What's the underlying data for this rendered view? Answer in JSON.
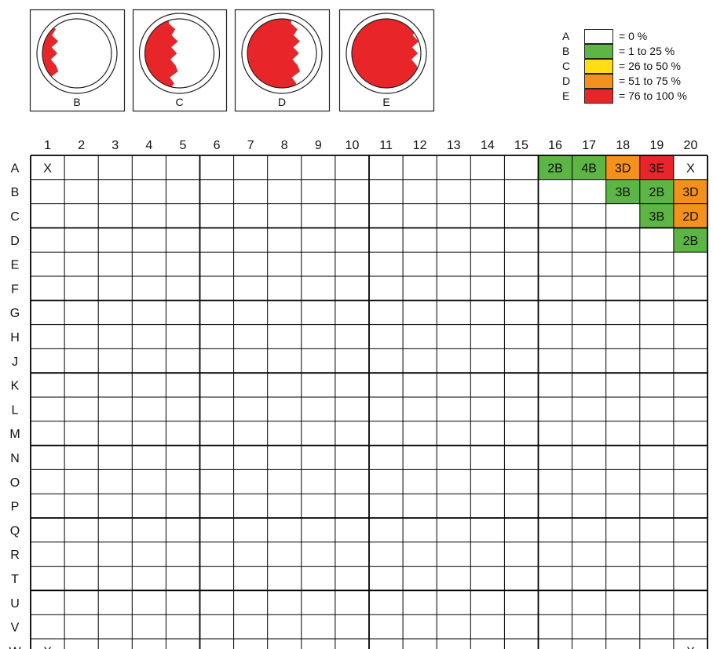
{
  "samples": [
    {
      "label": "B",
      "fill_level": 0.12
    },
    {
      "label": "C",
      "fill_level": 0.38
    },
    {
      "label": "D",
      "fill_level": 0.68
    },
    {
      "label": "E",
      "fill_level": 0.9
    }
  ],
  "legend": [
    {
      "code": "A",
      "text": "= 0 %",
      "color": "#ffffff"
    },
    {
      "code": "B",
      "text": "= 1 to 25 %",
      "color": "#5cb545"
    },
    {
      "code": "C",
      "text": "= 26 to 50 %",
      "color": "#ffdc14"
    },
    {
      "code": "D",
      "text": "= 51 to 75 %",
      "color": "#f4901c"
    },
    {
      "code": "E",
      "text": "= 76 to 100 %",
      "color": "#e8262a"
    }
  ],
  "colors": {
    "fill_red": "#e8262a",
    "grid_line": "#000000",
    "B": "#5cb545",
    "C": "#ffdc14",
    "D": "#f4901c",
    "E": "#e8262a"
  },
  "grid": {
    "columns": [
      "1",
      "2",
      "3",
      "4",
      "5",
      "6",
      "7",
      "8",
      "9",
      "10",
      "11",
      "12",
      "13",
      "14",
      "15",
      "16",
      "17",
      "18",
      "19",
      "20"
    ],
    "rows": [
      "A",
      "B",
      "C",
      "D",
      "E",
      "F",
      "G",
      "H",
      "J",
      "K",
      "L",
      "M",
      "N",
      "O",
      "P",
      "Q",
      "R",
      "T",
      "U",
      "V",
      "W"
    ],
    "cells": [
      {
        "row": "A",
        "col": "1",
        "text": "X"
      },
      {
        "row": "A",
        "col": "16",
        "text": "2B",
        "grade": "B"
      },
      {
        "row": "A",
        "col": "17",
        "text": "4B",
        "grade": "B"
      },
      {
        "row": "A",
        "col": "18",
        "text": "3D",
        "grade": "D"
      },
      {
        "row": "A",
        "col": "19",
        "text": "3E",
        "grade": "E"
      },
      {
        "row": "A",
        "col": "20",
        "text": "X"
      },
      {
        "row": "B",
        "col": "18",
        "text": "3B",
        "grade": "B"
      },
      {
        "row": "B",
        "col": "19",
        "text": "2B",
        "grade": "B"
      },
      {
        "row": "B",
        "col": "20",
        "text": "3D",
        "grade": "D"
      },
      {
        "row": "C",
        "col": "19",
        "text": "3B",
        "grade": "B"
      },
      {
        "row": "C",
        "col": "20",
        "text": "2D",
        "grade": "D"
      },
      {
        "row": "D",
        "col": "20",
        "text": "2B",
        "grade": "B"
      },
      {
        "row": "W",
        "col": "1",
        "text": "X"
      },
      {
        "row": "W",
        "col": "20",
        "text": "X"
      }
    ]
  }
}
